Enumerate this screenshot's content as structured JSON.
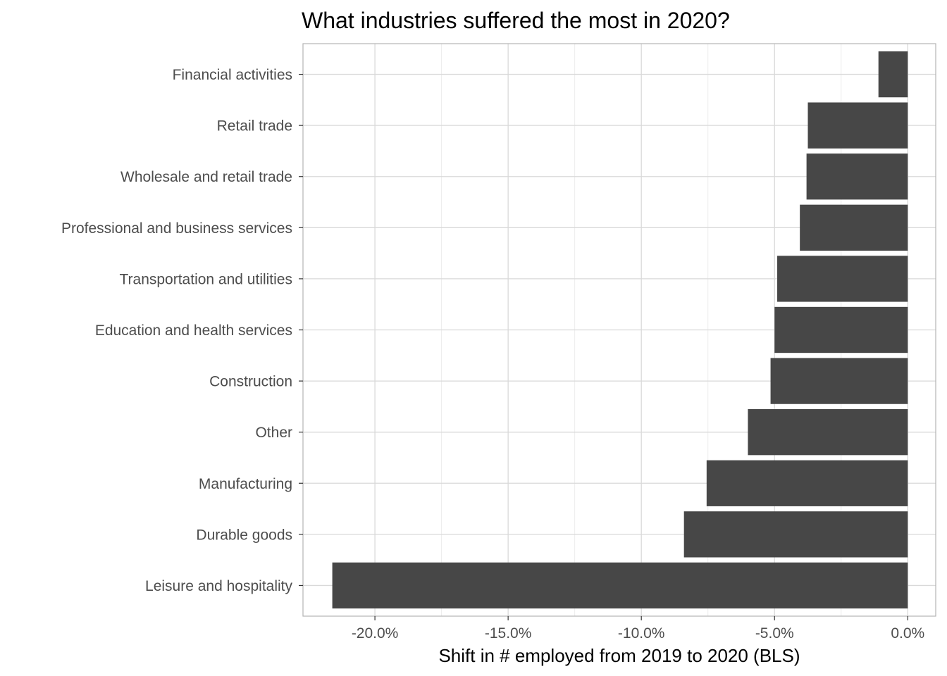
{
  "chart_data": {
    "type": "bar",
    "orientation": "horizontal",
    "title": "What industries suffered the most in 2020?",
    "xlabel": "Shift in # employed from 2019 to 2020 (BLS)",
    "ylabel": "",
    "categories": [
      "Financial activities",
      "Retail trade",
      "Wholesale and retail trade",
      "Professional and business services",
      "Transportation and utilities",
      "Education and health services",
      "Construction",
      "Other",
      "Manufacturing",
      "Durable goods",
      "Leisure and hospitality"
    ],
    "values": [
      -1.1,
      -3.75,
      -3.8,
      -4.05,
      -4.9,
      -5.0,
      -5.15,
      -6.0,
      -7.55,
      -8.4,
      -21.6
    ],
    "xlim": [
      -22.7,
      1.05
    ],
    "xticks": [
      -20,
      -15,
      -10,
      -5,
      0
    ],
    "xtick_labels": [
      "-20.0%",
      "-15.0%",
      "-10.0%",
      "-5.0%",
      "0.0%"
    ],
    "grid": true,
    "bar_color": "#474747"
  }
}
